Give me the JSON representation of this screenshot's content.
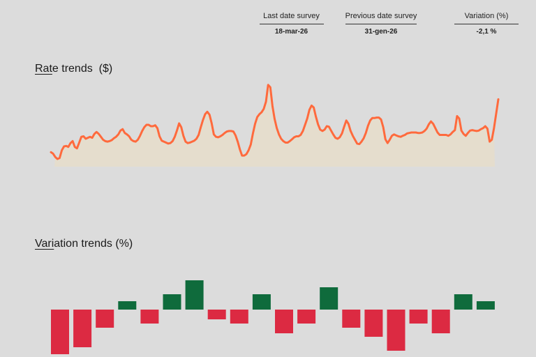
{
  "summary": {
    "last_label": "Last date survey",
    "last_value": "18-mar-26",
    "prev_label": "Previous date survey",
    "prev_value": "31-gen-26",
    "var_label": "Variation (%)",
    "var_value": "-2,1 %"
  },
  "rate_title": {
    "u": "Rat",
    "rest": "e trends  ($)"
  },
  "var_title": {
    "u": "Vari",
    "rest": "ation trends (%)"
  },
  "colors": {
    "line": "#ff6a3d",
    "area": "#e5ddcd",
    "positive": "#0f6b3c",
    "negative": "#dc2a42"
  },
  "chart_data": [
    {
      "type": "area",
      "title": "Rate trends  ($)",
      "xlabel": "",
      "ylabel": "",
      "values": [
        3.0,
        2.7,
        2.0,
        1.6,
        1.8,
        3.4,
        4.2,
        4.3,
        4.1,
        4.9,
        5.3,
        4.1,
        3.8,
        5.0,
        6.2,
        6.3,
        5.8,
        6.0,
        6.2,
        6.0,
        6.8,
        7.2,
        6.8,
        6.2,
        5.6,
        5.3,
        5.2,
        5.3,
        5.5,
        5.9,
        6.2,
        6.7,
        7.5,
        7.8,
        7.0,
        6.7,
        6.3,
        5.6,
        5.3,
        5.2,
        5.6,
        6.4,
        7.4,
        8.2,
        8.7,
        8.7,
        8.4,
        8.4,
        8.6,
        8.0,
        6.3,
        5.4,
        5.2,
        5.0,
        4.8,
        4.9,
        5.3,
        6.2,
        7.5,
        9.0,
        8.2,
        6.4,
        5.2,
        4.9,
        5.0,
        5.2,
        5.4,
        5.8,
        6.6,
        8.2,
        9.7,
        10.9,
        11.4,
        10.8,
        9.0,
        6.7,
        6.2,
        6.1,
        6.3,
        6.6,
        7.0,
        7.3,
        7.4,
        7.4,
        7.3,
        6.5,
        5.2,
        3.6,
        2.3,
        2.3,
        2.6,
        3.4,
        4.6,
        6.9,
        8.9,
        10.3,
        10.9,
        11.3,
        12.0,
        13.5,
        17.0,
        16.5,
        12.6,
        9.9,
        8.0,
        6.7,
        5.8,
        5.3,
        5.0,
        5.0,
        5.3,
        5.7,
        6.1,
        6.3,
        6.3,
        6.6,
        7.4,
        8.7,
        10.0,
        11.8,
        12.7,
        12.3,
        10.4,
        8.8,
        7.7,
        7.4,
        7.7,
        8.4,
        8.3,
        7.5,
        6.7,
        6.0,
        5.8,
        6.1,
        6.9,
        8.3,
        9.6,
        8.9,
        7.4,
        6.4,
        5.6,
        4.8,
        4.7,
        5.2,
        5.9,
        7.0,
        8.5,
        9.6,
        10.1,
        10.1,
        10.2,
        10.2,
        9.8,
        8.2,
        5.7,
        4.9,
        5.6,
        6.4,
        6.7,
        6.5,
        6.3,
        6.2,
        6.4,
        6.6,
        6.9,
        7.0,
        7.1,
        7.1,
        7.1,
        7.0,
        7.0,
        7.1,
        7.4,
        7.9,
        8.8,
        9.4,
        8.9,
        8.0,
        7.1,
        6.6,
        6.6,
        6.6,
        6.6,
        6.4,
        6.7,
        7.2,
        7.6,
        10.5,
        10.0,
        7.5,
        6.8,
        6.4,
        7.0,
        7.5,
        7.6,
        7.5,
        7.4,
        7.5,
        7.8,
        8.0,
        8.4,
        7.9,
        5.2,
        5.6,
        8.0,
        11.0,
        14.0
      ]
    },
    {
      "type": "bar",
      "title": "Variation trends (%)",
      "xlabel": "",
      "ylabel": "",
      "values": [
        -6.4,
        -5.4,
        -2.6,
        1.2,
        -2.0,
        2.2,
        4.2,
        -1.4,
        -2.0,
        2.2,
        -3.4,
        -2.0,
        3.2,
        -2.6,
        -3.9,
        -5.9,
        -2.0,
        -3.4,
        2.2,
        1.2
      ]
    }
  ]
}
